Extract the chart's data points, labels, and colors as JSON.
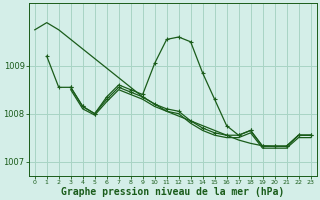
{
  "background_color": "#d4eee8",
  "plot_bg_color": "#d4eee8",
  "grid_color": "#a8d4c4",
  "line_color": "#1a5c1a",
  "xlabel": "Graphe pression niveau de la mer (hPa)",
  "xlabel_fontsize": 7,
  "ylim": [
    1006.7,
    1010.3
  ],
  "xlim": [
    -0.5,
    23.5
  ],
  "yticks": [
    1007,
    1008,
    1009
  ],
  "xticks": [
    0,
    1,
    2,
    3,
    4,
    5,
    6,
    7,
    8,
    9,
    10,
    11,
    12,
    13,
    14,
    15,
    16,
    17,
    18,
    19,
    20,
    21,
    22,
    23
  ],
  "series": [
    {
      "x": [
        0,
        1,
        2,
        3,
        4,
        5,
        6,
        7,
        8,
        9,
        10,
        11,
        12,
        13,
        14,
        15,
        16,
        17,
        18,
        19,
        20,
        21,
        22,
        23
      ],
      "y": [
        1009.75,
        1009.9,
        1009.75,
        1009.55,
        1009.35,
        1009.15,
        1008.95,
        1008.75,
        1008.55,
        1008.35,
        1008.2,
        1008.05,
        1007.95,
        1007.85,
        1007.75,
        1007.65,
        1007.55,
        1007.45,
        1007.38,
        1007.33,
        1007.32,
        1007.32,
        1007.55,
        1007.55
      ],
      "has_markers": false,
      "lw": 0.9
    },
    {
      "x": [
        1,
        2,
        3,
        4,
        5,
        6,
        7,
        8,
        9,
        10,
        11,
        12,
        13,
        14,
        15,
        16,
        17,
        18,
        19,
        20,
        21,
        22,
        23
      ],
      "y": [
        1009.2,
        1008.55,
        1008.55,
        1008.15,
        1008.0,
        1008.35,
        1008.6,
        1008.5,
        1008.4,
        1009.05,
        1009.55,
        1009.6,
        1009.5,
        1008.85,
        1008.3,
        1007.75,
        1007.55,
        1007.65,
        1007.32,
        1007.32,
        1007.32,
        1007.55,
        1007.55
      ],
      "has_markers": true,
      "lw": 0.9
    },
    {
      "x": [
        3,
        4,
        5,
        6,
        7,
        8,
        9,
        10,
        11,
        12,
        13,
        14,
        15,
        16,
        17,
        18,
        19,
        20,
        21,
        22,
        23
      ],
      "y": [
        1008.55,
        1008.15,
        1008.0,
        1008.3,
        1008.55,
        1008.45,
        1008.35,
        1008.2,
        1008.1,
        1008.05,
        1007.85,
        1007.7,
        1007.6,
        1007.55,
        1007.55,
        1007.65,
        1007.32,
        1007.32,
        1007.32,
        1007.55,
        1007.55
      ],
      "has_markers": true,
      "lw": 0.9
    },
    {
      "x": [
        3,
        4,
        5,
        6,
        7,
        8,
        9,
        10,
        11,
        12,
        13,
        14,
        15,
        16,
        17,
        18,
        19,
        20,
        21,
        22,
        23
      ],
      "y": [
        1008.5,
        1008.1,
        1007.97,
        1008.25,
        1008.5,
        1008.4,
        1008.3,
        1008.15,
        1008.05,
        1008.0,
        1007.8,
        1007.65,
        1007.55,
        1007.5,
        1007.5,
        1007.6,
        1007.28,
        1007.28,
        1007.28,
        1007.5,
        1007.5
      ],
      "has_markers": false,
      "lw": 0.9
    }
  ]
}
